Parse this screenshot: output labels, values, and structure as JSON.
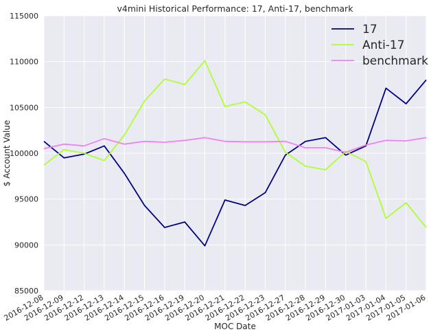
{
  "chart_data": {
    "type": "line",
    "title": "v4mini Historical Performance: 17, Anti-17, benchmark",
    "xlabel": "MOC Date",
    "ylabel": "$ Account Value",
    "x": [
      "2016-12-08",
      "2016-12-09",
      "2016-12-12",
      "2016-12-13",
      "2016-12-14",
      "2016-12-15",
      "2016-12-16",
      "2016-12-19",
      "2016-12-20",
      "2016-12-21",
      "2016-12-22",
      "2016-12-23",
      "2016-12-27",
      "2016-12-28",
      "2016-12-29",
      "2016-12-30",
      "2017-01-03",
      "2017-01-04",
      "2017-01-05",
      "2017-01-06"
    ],
    "ylim": [
      85000,
      115000
    ],
    "yticks": [
      85000,
      90000,
      95000,
      100000,
      105000,
      110000,
      115000
    ],
    "ytick_labels": [
      "85000",
      "90000",
      "95000",
      "100000",
      "105000",
      "110000",
      "115000"
    ],
    "grid": true,
    "legend_position": "top-right",
    "series": [
      {
        "name": "17",
        "color": "#000080",
        "values": [
          101300,
          99500,
          99900,
          100800,
          97800,
          94300,
          91900,
          92500,
          89900,
          94900,
          94300,
          95700,
          99800,
          101300,
          101700,
          99800,
          100800,
          107100,
          105400,
          108000
        ]
      },
      {
        "name": "Anti-17",
        "color": "#adff2f",
        "values": [
          98700,
          100400,
          100000,
          99200,
          102000,
          105700,
          108100,
          107500,
          110100,
          105100,
          105600,
          104200,
          100100,
          98600,
          98200,
          100200,
          99100,
          92900,
          94600,
          91900
        ]
      },
      {
        "name": "benchmark",
        "color": "#ee82ee",
        "values": [
          100500,
          101000,
          100800,
          101600,
          101000,
          101300,
          101200,
          101400,
          101700,
          101300,
          101250,
          101250,
          101300,
          100600,
          100600,
          100100,
          100900,
          101400,
          101350,
          101700
        ]
      }
    ]
  }
}
